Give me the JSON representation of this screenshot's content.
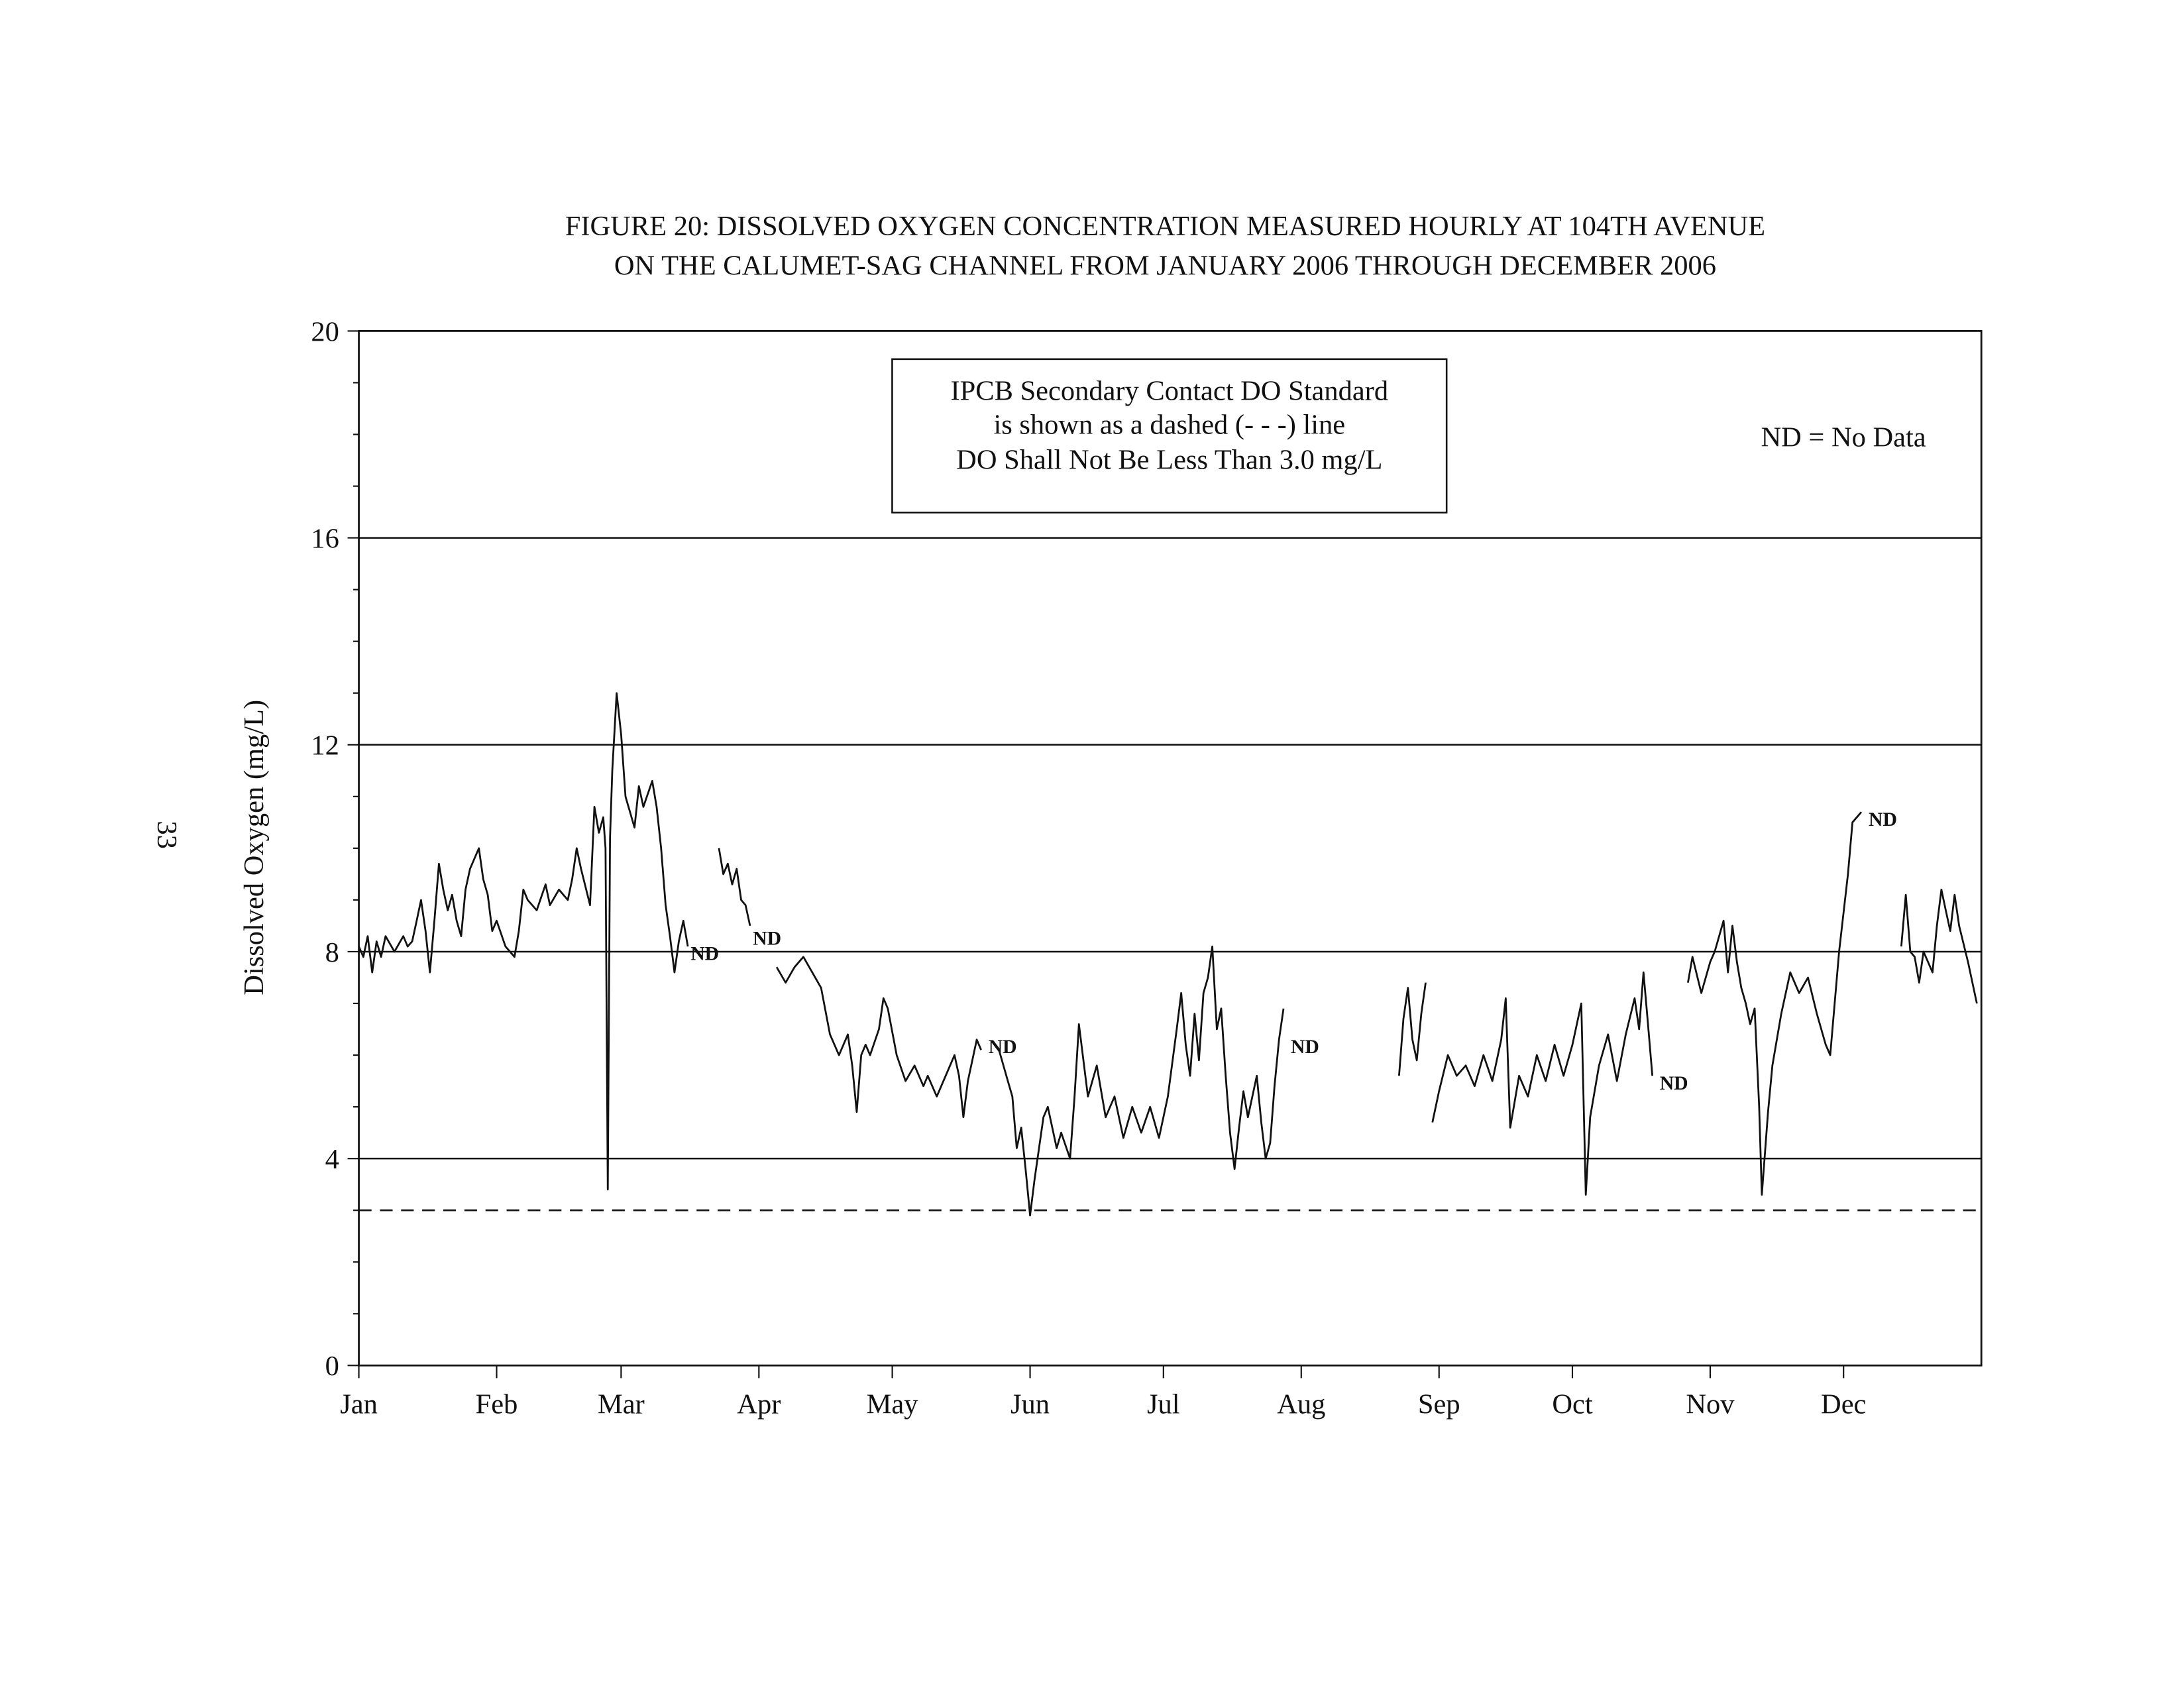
{
  "page_number": "33",
  "chart_data": {
    "type": "line",
    "title_line1": "FIGURE 20: DISSOLVED OXYGEN CONCENTRATION MEASURED HOURLY AT 104TH AVENUE",
    "title_line2": "ON THE CALUMET-SAG CHANNEL FROM JANUARY 2006 THROUGH DECEMBER 2006",
    "xlabel": "",
    "ylabel": "Dissolved Oxygen (mg/L)",
    "ylim": [
      0,
      20
    ],
    "xlim_days": [
      0,
      365
    ],
    "y_ticks": [
      "0",
      "4",
      "8",
      "12",
      "16",
      "20"
    ],
    "y_tick_values": [
      0,
      4,
      8,
      12,
      16,
      20
    ],
    "y_gridlines": [
      4,
      8,
      12,
      16
    ],
    "x_ticks": [
      {
        "label": "Jan",
        "day": 0
      },
      {
        "label": "Feb",
        "day": 31
      },
      {
        "label": "Mar",
        "day": 59
      },
      {
        "label": "Apr",
        "day": 90
      },
      {
        "label": "May",
        "day": 120
      },
      {
        "label": "Jun",
        "day": 151
      },
      {
        "label": "Jul",
        "day": 181
      },
      {
        "label": "Aug",
        "day": 212
      },
      {
        "label": "Sep",
        "day": 243
      },
      {
        "label": "Oct",
        "day": 273
      },
      {
        "label": "Nov",
        "day": 304
      },
      {
        "label": "Dec",
        "day": 334
      }
    ],
    "standard_line": {
      "value": 3.0,
      "style": "dashed"
    },
    "legend_box": [
      "IPCB Secondary Contact DO Standard",
      "is shown as a dashed (- - -) line",
      "DO Shall Not Be Less Than 3.0 mg/L"
    ],
    "note": "ND = No Data",
    "annotations": [
      {
        "text": "ND",
        "day": 74,
        "value": 8.0
      },
      {
        "text": "ND",
        "day": 88,
        "value": 8.3
      },
      {
        "text": "ND",
        "day": 141,
        "value": 6.2
      },
      {
        "text": "ND",
        "day": 209,
        "value": 6.2
      },
      {
        "text": "ND",
        "day": 292,
        "value": 5.5
      },
      {
        "text": "ND",
        "day": 339,
        "value": 10.6
      }
    ],
    "series": [
      {
        "name": "Dissolved Oxygen",
        "segments": [
          [
            [
              0,
              8.1
            ],
            [
              1,
              7.9
            ],
            [
              2,
              8.3
            ],
            [
              3,
              7.6
            ],
            [
              4,
              8.2
            ],
            [
              5,
              7.9
            ],
            [
              6,
              8.3
            ],
            [
              8,
              8.0
            ],
            [
              10,
              8.3
            ],
            [
              11,
              8.1
            ],
            [
              12,
              8.2
            ],
            [
              13,
              8.6
            ],
            [
              14,
              9.0
            ],
            [
              15,
              8.4
            ],
            [
              16,
              7.6
            ],
            [
              17,
              8.6
            ],
            [
              18,
              9.7
            ],
            [
              19,
              9.2
            ],
            [
              20,
              8.8
            ],
            [
              21,
              9.1
            ],
            [
              22,
              8.6
            ],
            [
              23,
              8.3
            ],
            [
              24,
              9.2
            ],
            [
              25,
              9.6
            ],
            [
              27,
              10.0
            ],
            [
              28,
              9.4
            ],
            [
              29,
              9.1
            ],
            [
              30,
              8.4
            ],
            [
              31,
              8.6
            ],
            [
              33,
              8.1
            ],
            [
              35,
              7.9
            ],
            [
              36,
              8.4
            ],
            [
              37,
              9.2
            ],
            [
              38,
              9.0
            ],
            [
              40,
              8.8
            ],
            [
              42,
              9.3
            ],
            [
              43,
              8.9
            ],
            [
              45,
              9.2
            ],
            [
              47,
              9.0
            ],
            [
              48,
              9.4
            ],
            [
              49,
              10.0
            ],
            [
              50,
              9.6
            ],
            [
              52,
              8.9
            ],
            [
              53,
              10.8
            ],
            [
              54,
              10.3
            ],
            [
              55,
              10.6
            ],
            [
              55.5,
              10.0
            ],
            [
              56,
              3.4
            ],
            [
              56.5,
              10.2
            ],
            [
              57,
              11.5
            ],
            [
              58,
              13.0
            ],
            [
              59,
              12.2
            ],
            [
              60,
              11.0
            ],
            [
              61,
              10.7
            ],
            [
              62,
              10.4
            ],
            [
              63,
              11.2
            ],
            [
              64,
              10.8
            ],
            [
              66,
              11.3
            ],
            [
              67,
              10.8
            ],
            [
              68,
              10.0
            ],
            [
              69,
              8.9
            ],
            [
              70,
              8.3
            ],
            [
              71,
              7.6
            ],
            [
              72,
              8.2
            ],
            [
              73,
              8.6
            ],
            [
              74,
              8.1
            ]
          ],
          [
            [
              81,
              10.0
            ],
            [
              82,
              9.5
            ],
            [
              83,
              9.7
            ],
            [
              84,
              9.3
            ],
            [
              85,
              9.6
            ],
            [
              86,
              9.0
            ],
            [
              87,
              8.9
            ],
            [
              88,
              8.5
            ]
          ],
          [
            [
              94,
              7.7
            ],
            [
              96,
              7.4
            ],
            [
              98,
              7.7
            ],
            [
              100,
              7.9
            ],
            [
              102,
              7.6
            ],
            [
              104,
              7.3
            ],
            [
              106,
              6.4
            ],
            [
              108,
              6.0
            ],
            [
              110,
              6.4
            ],
            [
              111,
              5.8
            ],
            [
              112,
              4.9
            ],
            [
              113,
              6.0
            ],
            [
              114,
              6.2
            ],
            [
              115,
              6.0
            ],
            [
              117,
              6.5
            ],
            [
              118,
              7.1
            ],
            [
              119,
              6.9
            ],
            [
              121,
              6.0
            ],
            [
              123,
              5.5
            ],
            [
              125,
              5.8
            ],
            [
              127,
              5.4
            ],
            [
              128,
              5.6
            ],
            [
              130,
              5.2
            ],
            [
              132,
              5.6
            ],
            [
              134,
              6.0
            ],
            [
              135,
              5.6
            ],
            [
              136,
              4.8
            ],
            [
              137,
              5.5
            ],
            [
              139,
              6.3
            ],
            [
              140,
              6.1
            ]
          ],
          [
            [
              144,
              6.1
            ],
            [
              146,
              5.5
            ],
            [
              147,
              5.2
            ],
            [
              148,
              4.2
            ],
            [
              149,
              4.6
            ],
            [
              150,
              3.8
            ],
            [
              151,
              2.9
            ],
            [
              152,
              3.6
            ],
            [
              154,
              4.8
            ],
            [
              155,
              5.0
            ],
            [
              157,
              4.2
            ],
            [
              158,
              4.5
            ],
            [
              160,
              4.0
            ],
            [
              161,
              5.2
            ],
            [
              162,
              6.6
            ],
            [
              164,
              5.2
            ],
            [
              166,
              5.8
            ],
            [
              168,
              4.8
            ],
            [
              170,
              5.2
            ],
            [
              172,
              4.4
            ],
            [
              174,
              5.0
            ],
            [
              176,
              4.5
            ],
            [
              178,
              5.0
            ],
            [
              180,
              4.4
            ],
            [
              182,
              5.2
            ],
            [
              184,
              6.5
            ],
            [
              185,
              7.2
            ],
            [
              186,
              6.2
            ],
            [
              187,
              5.6
            ],
            [
              188,
              6.8
            ],
            [
              189,
              5.9
            ],
            [
              190,
              7.2
            ],
            [
              191,
              7.5
            ],
            [
              192,
              8.1
            ],
            [
              193,
              6.5
            ],
            [
              194,
              6.9
            ],
            [
              195,
              5.6
            ],
            [
              196,
              4.5
            ],
            [
              197,
              3.8
            ],
            [
              198,
              4.6
            ],
            [
              199,
              5.3
            ],
            [
              200,
              4.8
            ],
            [
              202,
              5.6
            ],
            [
              203,
              4.7
            ],
            [
              204,
              4.0
            ],
            [
              205,
              4.3
            ],
            [
              206,
              5.4
            ],
            [
              207,
              6.3
            ],
            [
              208,
              6.9
            ]
          ],
          [
            [
              234,
              5.6
            ],
            [
              235,
              6.7
            ],
            [
              236,
              7.3
            ],
            [
              237,
              6.3
            ],
            [
              238,
              5.9
            ],
            [
              239,
              6.8
            ],
            [
              240,
              7.4
            ]
          ],
          [
            [
              241.5,
              4.7
            ],
            [
              243,
              5.3
            ],
            [
              245,
              6.0
            ],
            [
              247,
              5.6
            ],
            [
              249,
              5.8
            ],
            [
              251,
              5.4
            ],
            [
              253,
              6.0
            ],
            [
              255,
              5.5
            ],
            [
              257,
              6.3
            ],
            [
              258,
              7.1
            ],
            [
              259,
              4.6
            ],
            [
              261,
              5.6
            ],
            [
              263,
              5.2
            ],
            [
              265,
              6.0
            ],
            [
              267,
              5.5
            ],
            [
              269,
              6.2
            ],
            [
              271,
              5.6
            ],
            [
              273,
              6.2
            ],
            [
              275,
              7.0
            ],
            [
              276,
              3.3
            ],
            [
              277,
              4.8
            ],
            [
              279,
              5.8
            ],
            [
              281,
              6.4
            ],
            [
              283,
              5.5
            ],
            [
              285,
              6.4
            ],
            [
              287,
              7.1
            ],
            [
              288,
              6.5
            ],
            [
              289,
              7.6
            ],
            [
              290,
              6.6
            ],
            [
              291,
              5.6
            ]
          ],
          [
            [
              299,
              7.4
            ],
            [
              300,
              7.9
            ],
            [
              302,
              7.2
            ],
            [
              304,
              7.8
            ],
            [
              305,
              8.0
            ],
            [
              307,
              8.6
            ],
            [
              308,
              7.6
            ],
            [
              309,
              8.5
            ],
            [
              310,
              7.8
            ],
            [
              311,
              7.3
            ],
            [
              312,
              7.0
            ],
            [
              313,
              6.6
            ],
            [
              314,
              6.9
            ],
            [
              315,
              5.0
            ],
            [
              315.6,
              3.3
            ],
            [
              317,
              4.9
            ],
            [
              318,
              5.8
            ],
            [
              320,
              6.8
            ],
            [
              322,
              7.6
            ],
            [
              324,
              7.2
            ],
            [
              326,
              7.5
            ],
            [
              328,
              6.8
            ],
            [
              330,
              6.2
            ],
            [
              331,
              6.0
            ],
            [
              333,
              8.0
            ],
            [
              335,
              9.5
            ],
            [
              336,
              10.5
            ],
            [
              338,
              10.7
            ]
          ],
          [
            [
              347,
              8.1
            ],
            [
              348,
              9.1
            ],
            [
              349,
              8.0
            ],
            [
              350,
              7.9
            ],
            [
              351,
              7.4
            ],
            [
              352,
              8.0
            ],
            [
              354,
              7.6
            ],
            [
              355,
              8.5
            ],
            [
              356,
              9.2
            ],
            [
              357,
              8.8
            ],
            [
              358,
              8.4
            ],
            [
              359,
              9.1
            ],
            [
              360,
              8.5
            ],
            [
              362,
              7.8
            ],
            [
              364,
              7.0
            ]
          ]
        ]
      }
    ]
  }
}
